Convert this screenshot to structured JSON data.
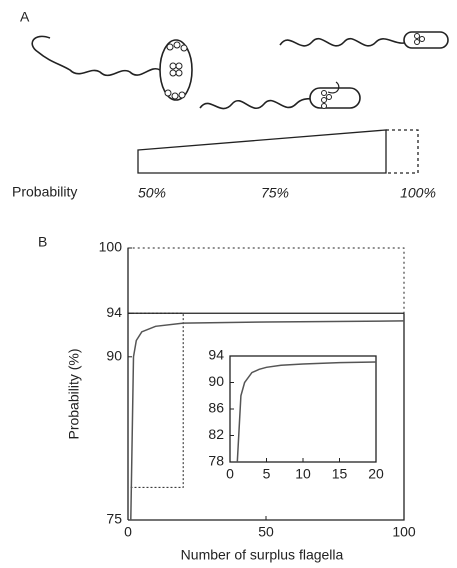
{
  "panel_a": {
    "label": "A",
    "scale_label": "Probability",
    "scale_ticks": [
      "50%",
      "75%",
      "100%"
    ]
  },
  "panel_b": {
    "label": "B"
  },
  "chart_data": [
    {
      "type": "line",
      "x_label": "Number of surplus flagella",
      "y_label": "Probability (%)",
      "x": [
        1,
        2,
        3,
        5,
        10,
        20,
        50,
        100
      ],
      "series": [
        {
          "color": "#555555",
          "values": [
            75,
            90,
            91.5,
            92.3,
            92.8,
            93.1,
            93.2,
            93.3
          ]
        }
      ],
      "xlim": [
        0,
        100
      ],
      "xticks": [
        0,
        50,
        100
      ],
      "ylim": [
        75,
        100
      ],
      "yticks": [
        75,
        90,
        94,
        100
      ],
      "reference_line": 94
    },
    {
      "type": "line",
      "x": [
        1,
        1.5,
        2,
        3,
        4,
        5,
        7,
        10,
        15,
        20
      ],
      "series": [
        {
          "color": "#555555",
          "values": [
            78,
            88,
            90,
            91.5,
            92,
            92.3,
            92.6,
            92.8,
            93,
            93.1
          ]
        }
      ],
      "xlim": [
        0,
        20
      ],
      "xticks": [
        0,
        5,
        10,
        15,
        20
      ],
      "ylim": [
        78,
        94
      ],
      "yticks": [
        78,
        82,
        86,
        90,
        94
      ]
    }
  ]
}
